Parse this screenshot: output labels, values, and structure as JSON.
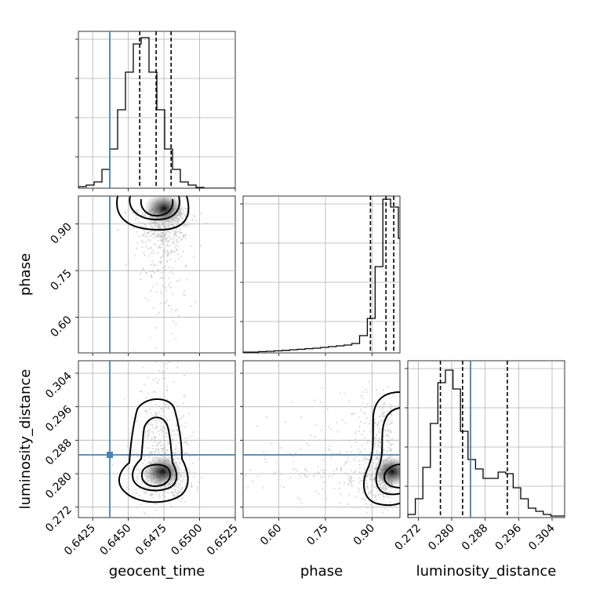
{
  "chart_data": {
    "type": "corner",
    "parameters": [
      "geocent_time",
      "phase",
      "luminosity_distance"
    ],
    "axis_labels": {
      "geocent_time": "geocent_time",
      "phase": "phase",
      "luminosity_distance": "luminosity_distance"
    },
    "truths": {
      "geocent_time": 0.6437,
      "phase": null,
      "luminosity_distance": 0.2845
    },
    "ranges": {
      "geocent_time": [
        0.6415,
        0.6525
      ],
      "phase": [
        0.485,
        0.99
      ],
      "luminosity_distance": [
        0.2695,
        0.307
      ]
    },
    "ticks": {
      "geocent_time": {
        "values": [
          0.6425,
          0.645,
          0.6475,
          0.65,
          0.6525
        ],
        "labels": [
          "0.6425",
          "0.6450",
          "0.6475",
          "0.6500",
          "0.6525"
        ]
      },
      "phase": {
        "values": [
          0.6,
          0.75,
          0.9
        ],
        "labels": [
          "0.60",
          "0.75",
          "0.90"
        ]
      },
      "luminosity_distance": {
        "values": [
          0.272,
          0.28,
          0.288,
          0.296,
          0.304
        ],
        "labels": [
          "0.272",
          "0.280",
          "0.288",
          "0.296",
          "0.304"
        ]
      }
    },
    "quantiles": {
      "geocent_time": [
        0.6458,
        0.64695,
        0.648
      ],
      "phase": [
        0.895,
        0.945,
        0.97
      ],
      "luminosity_distance": [
        0.2773,
        0.2826,
        0.2933
      ]
    },
    "histograms": {
      "geocent_time": {
        "edges": [
          0.6415,
          0.64205,
          0.6426,
          0.64315,
          0.6437,
          0.64425,
          0.6448,
          0.64535,
          0.6459,
          0.64645,
          0.647,
          0.64755,
          0.6481,
          0.64865,
          0.6492,
          0.64975,
          0.6503,
          0.65085,
          0.6514,
          0.65195,
          0.6525
        ],
        "counts": [
          0.01,
          0.02,
          0.04,
          0.12,
          0.25,
          0.5,
          0.74,
          0.92,
          0.96,
          0.74,
          0.5,
          0.25,
          0.12,
          0.04,
          0.02,
          0.005,
          0,
          0,
          0,
          0
        ]
      },
      "phase": {
        "edges": [
          0.485,
          0.51,
          0.535,
          0.56,
          0.585,
          0.61,
          0.635,
          0.66,
          0.685,
          0.71,
          0.735,
          0.76,
          0.785,
          0.81,
          0.835,
          0.86,
          0.885,
          0.91,
          0.935,
          0.96,
          0.985,
          0.99
        ],
        "counts": [
          0.005,
          0.005,
          0.008,
          0.01,
          0.013,
          0.016,
          0.02,
          0.023,
          0.027,
          0.03,
          0.035,
          0.04,
          0.045,
          0.05,
          0.06,
          0.11,
          0.22,
          0.55,
          0.98,
          0.93,
          0.73
        ]
      },
      "luminosity_distance": {
        "edges": [
          0.2695,
          0.2713,
          0.2731,
          0.2749,
          0.2767,
          0.2785,
          0.2803,
          0.2821,
          0.2839,
          0.2857,
          0.2875,
          0.2893,
          0.2911,
          0.2929,
          0.2947,
          0.2965,
          0.2983,
          0.3001,
          0.3019,
          0.3037,
          0.307
        ],
        "counts": [
          0.02,
          0.12,
          0.32,
          0.6,
          0.86,
          0.94,
          0.82,
          0.55,
          0.37,
          0.31,
          0.25,
          0.25,
          0.29,
          0.28,
          0.19,
          0.12,
          0.06,
          0.04,
          0.02,
          0.01
        ]
      }
    },
    "density_modes": {
      "geocent_time_phase": {
        "x": 0.6475,
        "y": 0.95
      },
      "geocent_time_luminosity_distance": {
        "x": 0.6474,
        "y": 0.2805
      },
      "phase_luminosity_distance": {
        "x": 0.965,
        "y": 0.2805
      }
    },
    "grid": true,
    "colors": {
      "truth": "#4682b4",
      "hist": "#000000",
      "points": "#bdbdbd"
    }
  }
}
